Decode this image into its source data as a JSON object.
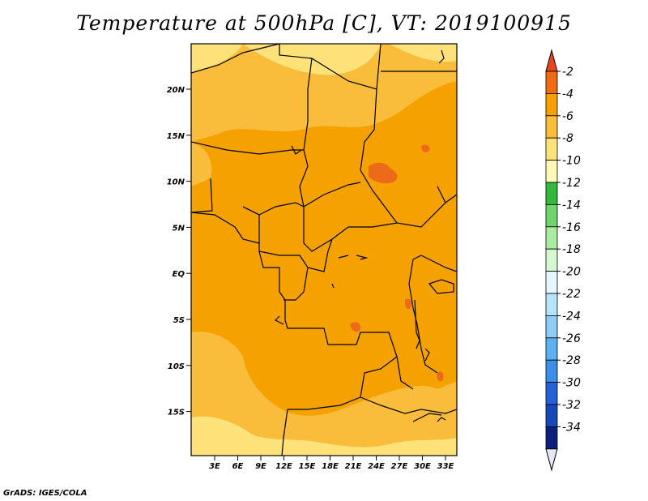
{
  "title": "Temperature at 500hPa [C], VT: 2019100915",
  "footer": "GrADS: IGES/COLA",
  "map": {
    "lon_labels": [
      "3E",
      "6E",
      "9E",
      "12E",
      "15E",
      "18E",
      "21E",
      "24E",
      "27E",
      "30E",
      "33E"
    ],
    "lat_labels": [
      "20N",
      "15N",
      "10N",
      "5N",
      "EQ",
      "5S",
      "10S",
      "15S"
    ],
    "colors": {
      "band_minus4_to_minus6": "#f5a100",
      "band_minus6_to_minus8": "#f9bc3b",
      "band_minus8_to_minus10": "#fde27a",
      "band_minus2_to_minus4": "#ee6a1b"
    }
  },
  "colorbar": {
    "labels": [
      "-2",
      "-4",
      "-6",
      "-8",
      "-10",
      "-12",
      "-14",
      "-16",
      "-18",
      "-20",
      "-22",
      "-24",
      "-26",
      "-28",
      "-30",
      "-32",
      "-34"
    ],
    "colors": [
      "#e8451f",
      "#f16a12",
      "#f5a100",
      "#f9bc3b",
      "#fde27a",
      "#fef8b7",
      "#33b83d",
      "#6fd46a",
      "#a9eba1",
      "#d6f8d0",
      "#e4f7ff",
      "#b6e4fc",
      "#8dcdf8",
      "#5fb0f0",
      "#3d8ee6",
      "#2562d8",
      "#1748b8",
      "#0c1f7e",
      "#e6e6f8"
    ]
  }
}
